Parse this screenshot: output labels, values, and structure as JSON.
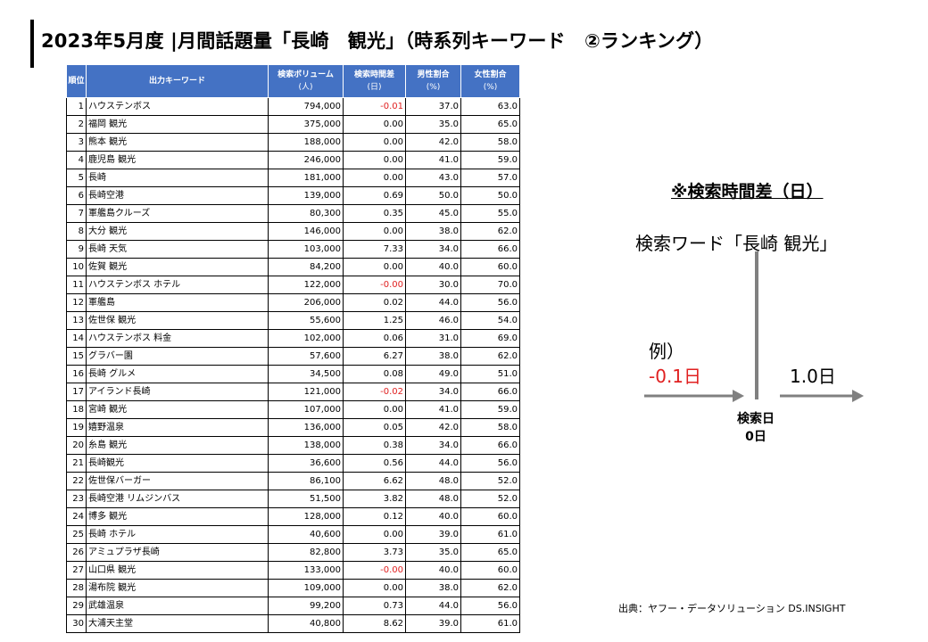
{
  "header": {
    "title": "2023年5月度 |月間話題量「長崎　観光」（時系列キーワード　②ランキング）"
  },
  "table": {
    "columns": {
      "rank": "順位",
      "keyword": "出力キーワード",
      "volume": "検索ボリューム",
      "volume_unit": "(人)",
      "time_diff": "検索時間差",
      "time_diff_unit": "(日)",
      "male": "男性割合",
      "male_unit": "(%)",
      "female": "女性割合",
      "female_unit": "(%)"
    },
    "rows": [
      {
        "rank": "1",
        "keyword": "ハウステンボス",
        "volume": "794,000",
        "time_diff": "-0.01",
        "male": "37.0",
        "female": "63.0",
        "negative": true
      },
      {
        "rank": "2",
        "keyword": "福岡 観光",
        "volume": "375,000",
        "time_diff": "0.00",
        "male": "35.0",
        "female": "65.0"
      },
      {
        "rank": "3",
        "keyword": "熊本 観光",
        "volume": "188,000",
        "time_diff": "0.00",
        "male": "42.0",
        "female": "58.0"
      },
      {
        "rank": "4",
        "keyword": "鹿児島 観光",
        "volume": "246,000",
        "time_diff": "0.00",
        "male": "41.0",
        "female": "59.0"
      },
      {
        "rank": "5",
        "keyword": "長崎",
        "volume": "181,000",
        "time_diff": "0.00",
        "male": "43.0",
        "female": "57.0"
      },
      {
        "rank": "6",
        "keyword": "長崎空港",
        "volume": "139,000",
        "time_diff": "0.69",
        "male": "50.0",
        "female": "50.0"
      },
      {
        "rank": "7",
        "keyword": "軍艦島クルーズ",
        "volume": "80,300",
        "time_diff": "0.35",
        "male": "45.0",
        "female": "55.0"
      },
      {
        "rank": "8",
        "keyword": "大分 観光",
        "volume": "146,000",
        "time_diff": "0.00",
        "male": "38.0",
        "female": "62.0"
      },
      {
        "rank": "9",
        "keyword": "長崎 天気",
        "volume": "103,000",
        "time_diff": "7.33",
        "male": "34.0",
        "female": "66.0"
      },
      {
        "rank": "10",
        "keyword": "佐賀 観光",
        "volume": "84,200",
        "time_diff": "0.00",
        "male": "40.0",
        "female": "60.0"
      },
      {
        "rank": "11",
        "keyword": "ハウステンボス ホテル",
        "volume": "122,000",
        "time_diff": "-0.00",
        "male": "30.0",
        "female": "70.0",
        "negative": true
      },
      {
        "rank": "12",
        "keyword": "軍艦島",
        "volume": "206,000",
        "time_diff": "0.02",
        "male": "44.0",
        "female": "56.0"
      },
      {
        "rank": "13",
        "keyword": "佐世保 観光",
        "volume": "55,600",
        "time_diff": "1.25",
        "male": "46.0",
        "female": "54.0"
      },
      {
        "rank": "14",
        "keyword": "ハウステンボス 料金",
        "volume": "102,000",
        "time_diff": "0.06",
        "male": "31.0",
        "female": "69.0"
      },
      {
        "rank": "15",
        "keyword": "グラバー園",
        "volume": "57,600",
        "time_diff": "6.27",
        "male": "38.0",
        "female": "62.0"
      },
      {
        "rank": "16",
        "keyword": "長崎 グルメ",
        "volume": "34,500",
        "time_diff": "0.08",
        "male": "49.0",
        "female": "51.0"
      },
      {
        "rank": "17",
        "keyword": "アイランド長崎",
        "volume": "121,000",
        "time_diff": "-0.02",
        "male": "34.0",
        "female": "66.0",
        "negative": true
      },
      {
        "rank": "18",
        "keyword": "宮崎 観光",
        "volume": "107,000",
        "time_diff": "0.00",
        "male": "41.0",
        "female": "59.0"
      },
      {
        "rank": "19",
        "keyword": "嬉野温泉",
        "volume": "136,000",
        "time_diff": "0.05",
        "male": "42.0",
        "female": "58.0"
      },
      {
        "rank": "20",
        "keyword": "糸島 観光",
        "volume": "138,000",
        "time_diff": "0.38",
        "male": "34.0",
        "female": "66.0"
      },
      {
        "rank": "21",
        "keyword": "長崎観光",
        "volume": "36,600",
        "time_diff": "0.56",
        "male": "44.0",
        "female": "56.0"
      },
      {
        "rank": "22",
        "keyword": "佐世保バーガー",
        "volume": "86,100",
        "time_diff": "6.62",
        "male": "48.0",
        "female": "52.0"
      },
      {
        "rank": "23",
        "keyword": "長崎空港 リムジンバス",
        "volume": "51,500",
        "time_diff": "3.82",
        "male": "48.0",
        "female": "52.0"
      },
      {
        "rank": "24",
        "keyword": "博多 観光",
        "volume": "128,000",
        "time_diff": "0.12",
        "male": "40.0",
        "female": "60.0"
      },
      {
        "rank": "25",
        "keyword": "長崎 ホテル",
        "volume": "40,600",
        "time_diff": "0.00",
        "male": "39.0",
        "female": "61.0"
      },
      {
        "rank": "26",
        "keyword": "アミュプラザ長崎",
        "volume": "82,800",
        "time_diff": "3.73",
        "male": "35.0",
        "female": "65.0"
      },
      {
        "rank": "27",
        "keyword": "山口県 観光",
        "volume": "133,000",
        "time_diff": "-0.00",
        "male": "40.0",
        "female": "60.0",
        "negative": true
      },
      {
        "rank": "28",
        "keyword": "湯布院 観光",
        "volume": "109,000",
        "time_diff": "0.00",
        "male": "38.0",
        "female": "62.0"
      },
      {
        "rank": "29",
        "keyword": "武雄温泉",
        "volume": "99,200",
        "time_diff": "0.73",
        "male": "44.0",
        "female": "56.0"
      },
      {
        "rank": "30",
        "keyword": "大浦天主堂",
        "volume": "40,800",
        "time_diff": "8.62",
        "male": "39.0",
        "female": "61.0"
      }
    ]
  },
  "note": {
    "title": "※検索時間差（日）",
    "search_word": "検索ワード「長崎 観光」",
    "example_label": "例）",
    "negative_value": "-0.1日",
    "positive_value": "1.0日",
    "search_day_line1": "検索日",
    "search_day_line2": "0日"
  },
  "source": "出典：ヤフー・データソリューション DS.INSIGHT",
  "colors": {
    "header_blue": "#4472c4",
    "negative_red": "#e02020",
    "arrow_gray": "#808080"
  }
}
